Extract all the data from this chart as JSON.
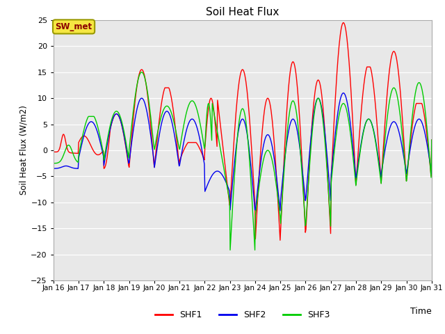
{
  "title": "Soil Heat Flux",
  "ylabel": "Soil Heat Flux (W/m2)",
  "xlabel": "Time",
  "ylim": [
    -25,
    25
  ],
  "yticks": [
    -25,
    -20,
    -15,
    -10,
    -5,
    0,
    5,
    10,
    15,
    20,
    25
  ],
  "xtick_labels": [
    "Jan 16",
    "Jan 17",
    "Jan 18",
    "Jan 19",
    "Jan 20",
    "Jan 21",
    "Jan 22",
    "Jan 23",
    "Jan 24",
    "Jan 25",
    "Jan 26",
    "Jan 27",
    "Jan 28",
    "Jan 29",
    "Jan 30",
    "Jan 31"
  ],
  "annotation_text": "SW_met",
  "annotation_box_color": "#f5e642",
  "annotation_text_color": "#8b0000",
  "line_colors": [
    "#ff0000",
    "#0000ee",
    "#00cc00"
  ],
  "line_labels": [
    "SHF1",
    "SHF2",
    "SHF3"
  ],
  "bg_color": "#e8e8e8",
  "grid_color": "#ffffff"
}
